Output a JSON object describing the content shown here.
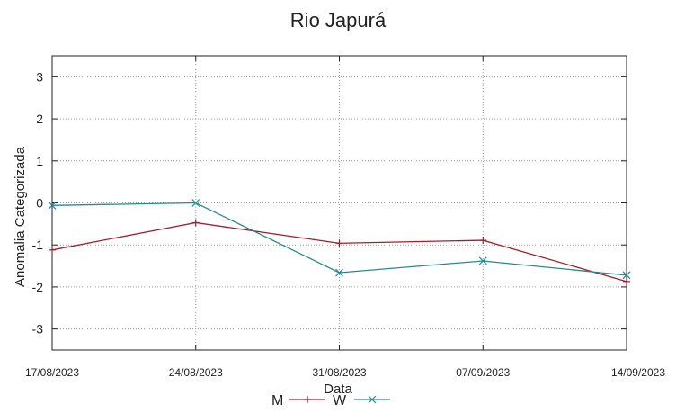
{
  "chart_data": {
    "type": "line",
    "title": "Rio Japurá",
    "xlabel": "Data",
    "ylabel": "Anomalia Categorizada",
    "categories": [
      "17/08/2023",
      "24/08/2023",
      "31/08/2023",
      "07/09/2023",
      "14/09/2023"
    ],
    "yticks": [
      "3",
      "2",
      "1",
      "0",
      "-1",
      "-2",
      "-3"
    ],
    "ylim": [
      -3.5,
      3.5
    ],
    "grid": true,
    "legend_position": "bottom-center",
    "series": [
      {
        "name": "M",
        "marker": "plus",
        "color": "#a0202a",
        "values": [
          -1.12,
          -0.47,
          -0.96,
          -0.89,
          -1.87
        ]
      },
      {
        "name": "W",
        "marker": "cross",
        "color": "#2a8a8a",
        "values": [
          -0.06,
          0.0,
          -1.66,
          -1.38,
          -1.72
        ]
      }
    ]
  }
}
